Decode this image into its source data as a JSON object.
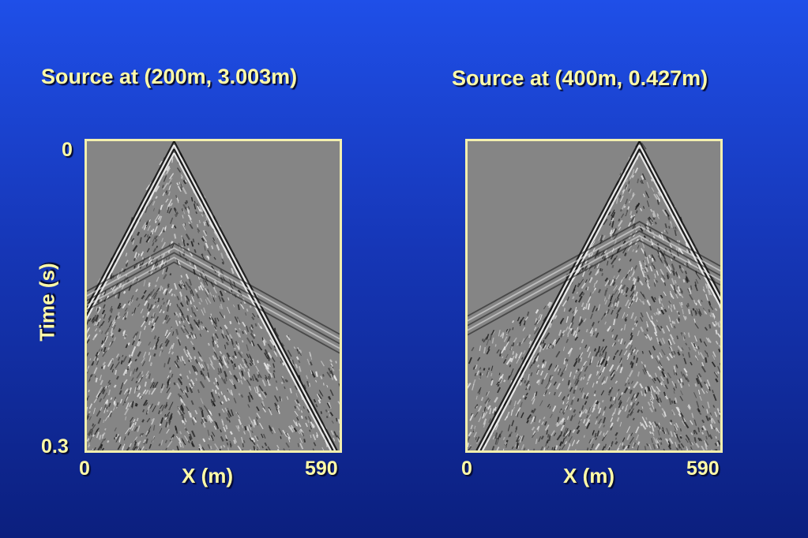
{
  "panels": [
    {
      "title": "Source at  (200m, 3.003m)",
      "x_min": "0",
      "x_max": "590",
      "x_label": "X (m)",
      "source_x_fraction": 0.345,
      "headwave_time_fraction": 0.33
    },
    {
      "title": "Source at  (400m, 0.427m)",
      "x_min": "0",
      "x_max": "590",
      "x_label": "X (m)",
      "source_x_fraction": 0.68,
      "headwave_time_fraction": 0.26
    }
  ],
  "time_axis": {
    "label": "Time (s)",
    "top": "0",
    "bottom": "0.3"
  },
  "colors": {
    "frame": "#f3efae",
    "label": "#fffba8",
    "section_bg": "#858585"
  }
}
